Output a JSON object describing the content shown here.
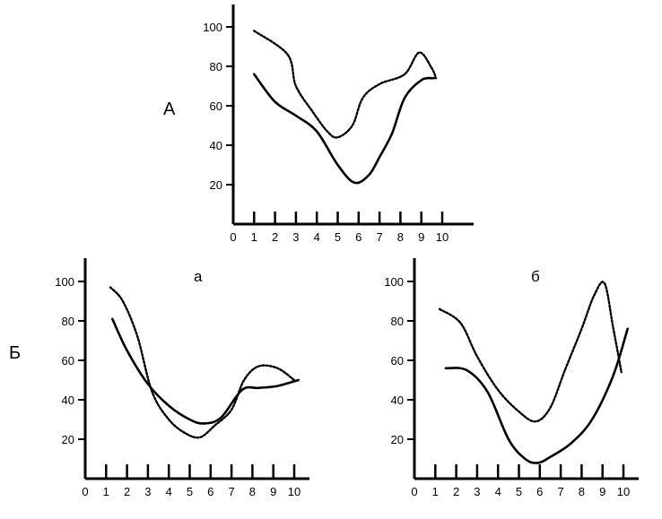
{
  "figure_labels": {
    "top": "А",
    "bottom_group": "Б"
  },
  "chart_data": [
    {
      "type": "line",
      "title": "",
      "panel_label": "А",
      "xlabel": "",
      "ylabel": "",
      "xlim": [
        0,
        10
      ],
      "ylim": [
        0,
        110
      ],
      "x_ticks": [
        "0",
        "1",
        "2",
        "3",
        "4",
        "5",
        "6",
        "7",
        "8",
        "9",
        "10"
      ],
      "y_ticks": [
        "20",
        "40",
        "60",
        "80",
        "100"
      ],
      "series": [
        {
          "style": "solid",
          "x": [
            1,
            2,
            3,
            4,
            5,
            5.8,
            6.5,
            7,
            7.6,
            8.2,
            9,
            9.6
          ],
          "y": [
            76,
            62,
            55,
            47,
            30,
            21,
            25,
            34,
            46,
            64,
            73,
            74
          ]
        },
        {
          "style": "dotted",
          "x": [
            1,
            2.6,
            3,
            3.8,
            4.5,
            5,
            5.7,
            6.2,
            7,
            8.2,
            8.9,
            9.5,
            9.7
          ],
          "y": [
            98,
            86,
            70,
            57,
            47,
            44,
            50,
            64,
            71,
            76,
            87,
            79,
            74
          ]
        }
      ]
    },
    {
      "type": "line",
      "title": "",
      "panel_label": "а",
      "xlabel": "",
      "ylabel": "",
      "xlim": [
        0,
        10
      ],
      "ylim": [
        0,
        110
      ],
      "x_ticks": [
        "0",
        "1",
        "2",
        "3",
        "4",
        "5",
        "6",
        "7",
        "8",
        "9",
        "10"
      ],
      "y_ticks": [
        "20",
        "40",
        "60",
        "80",
        "100"
      ],
      "series": [
        {
          "style": "solid",
          "x": [
            1.3,
            2,
            3,
            4,
            5,
            5.7,
            6.5,
            7.5,
            8.3,
            9.2,
            10.2
          ],
          "y": [
            81,
            65,
            48,
            37,
            30,
            28,
            31,
            45,
            46,
            47,
            50
          ]
        },
        {
          "style": "dotted",
          "x": [
            1.2,
            1.8,
            2.5,
            3.2,
            4,
            4.8,
            5.5,
            6.2,
            7,
            7.6,
            8.3,
            9.2,
            10
          ],
          "y": [
            97,
            90,
            72,
            44,
            30,
            23,
            21,
            27,
            35,
            50,
            57,
            56,
            50
          ]
        }
      ]
    },
    {
      "type": "line",
      "title": "",
      "panel_label": "б",
      "xlabel": "",
      "ylabel": "",
      "xlim": [
        0,
        10
      ],
      "ylim": [
        0,
        110
      ],
      "x_ticks": [
        "0",
        "1",
        "2",
        "3",
        "4",
        "5",
        "6",
        "7",
        "8",
        "9",
        "10"
      ],
      "y_ticks": [
        "20",
        "40",
        "60",
        "80",
        "100"
      ],
      "series": [
        {
          "style": "solid",
          "x": [
            1.5,
            2.5,
            3.5,
            4.5,
            5.3,
            5.9,
            6.5,
            7.5,
            8.5,
            9.5,
            10.2
          ],
          "y": [
            56,
            55,
            44,
            20,
            10,
            8,
            11,
            18,
            30,
            52,
            76
          ]
        },
        {
          "style": "dotted",
          "x": [
            1.2,
            2.2,
            3,
            4,
            5,
            5.8,
            6.5,
            7.2,
            8,
            8.6,
            9.1,
            9.5,
            9.8,
            9.9
          ],
          "y": [
            86,
            79,
            62,
            45,
            34,
            29,
            36,
            55,
            76,
            93,
            99,
            77,
            60,
            54
          ]
        }
      ]
    }
  ]
}
